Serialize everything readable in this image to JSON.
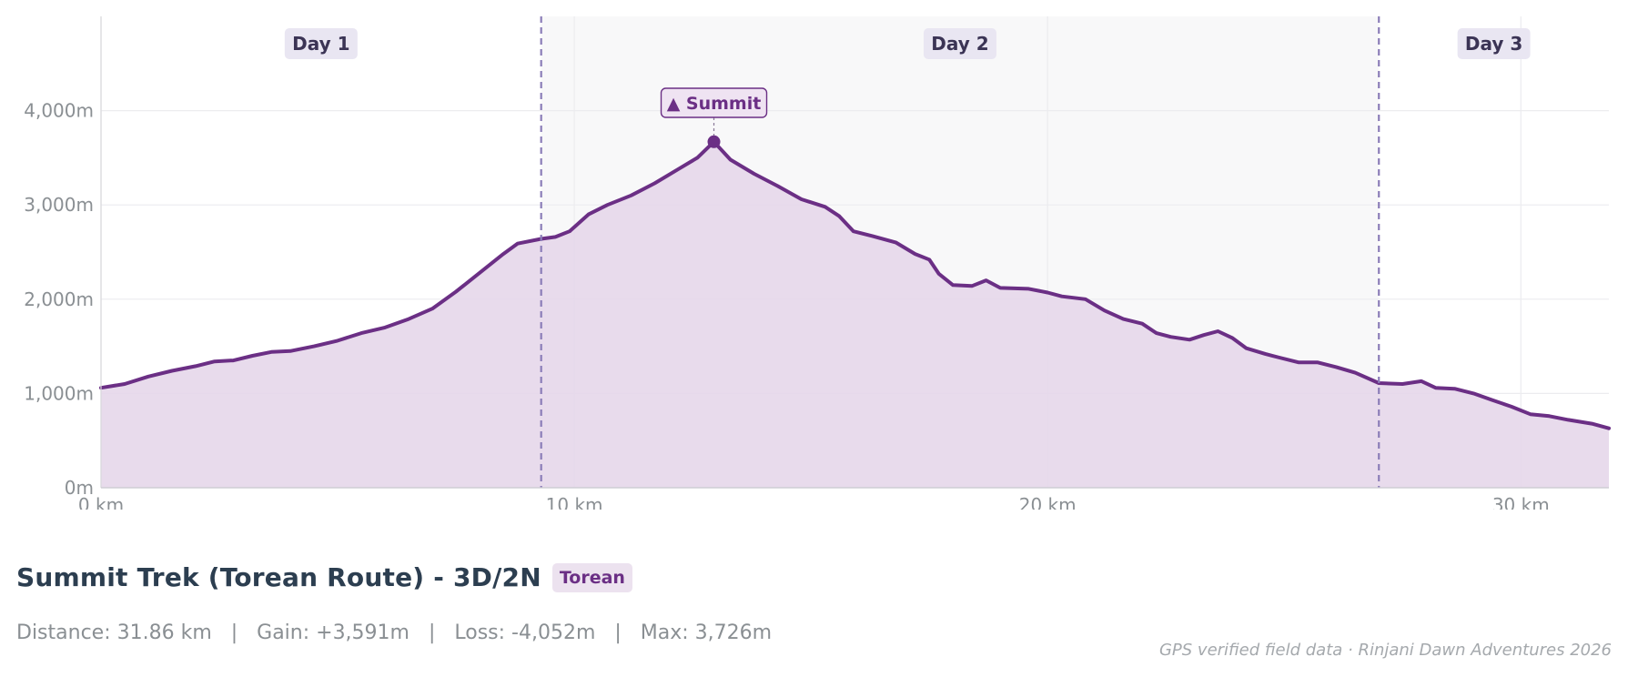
{
  "chart_data": {
    "type": "area",
    "title": "Summit Trek (Torean Route) - 3D/2N",
    "route_badge": "Torean",
    "xlabel": "",
    "ylabel": "",
    "xlim": [
      0,
      31.86
    ],
    "ylim": [
      0,
      5000
    ],
    "x_ticks": [
      {
        "value": 0,
        "label": "0 km"
      },
      {
        "value": 10,
        "label": "10 km"
      },
      {
        "value": 20,
        "label": "20 km"
      },
      {
        "value": 30,
        "label": "30 km"
      }
    ],
    "y_ticks": [
      {
        "value": 0,
        "label": "0m"
      },
      {
        "value": 1000,
        "label": "1,000m"
      },
      {
        "value": 2000,
        "label": "2,000m"
      },
      {
        "value": 3000,
        "label": "3,000m"
      },
      {
        "value": 4000,
        "label": "4,000m"
      }
    ],
    "grid": true,
    "series": [
      {
        "color": "#6b2f85",
        "fill": "#e6d7ea",
        "points": [
          [
            0,
            1060
          ],
          [
            0.5,
            1100
          ],
          [
            1.0,
            1180
          ],
          [
            1.5,
            1240
          ],
          [
            2.0,
            1290
          ],
          [
            2.4,
            1340
          ],
          [
            2.8,
            1350
          ],
          [
            3.2,
            1400
          ],
          [
            3.6,
            1440
          ],
          [
            4.0,
            1450
          ],
          [
            4.5,
            1500
          ],
          [
            5.0,
            1560
          ],
          [
            5.5,
            1640
          ],
          [
            6.0,
            1700
          ],
          [
            6.5,
            1790
          ],
          [
            7.0,
            1900
          ],
          [
            7.5,
            2080
          ],
          [
            8.0,
            2280
          ],
          [
            8.5,
            2480
          ],
          [
            8.8,
            2590
          ],
          [
            9.3,
            2640
          ],
          [
            9.6,
            2660
          ],
          [
            9.9,
            2720
          ],
          [
            10.3,
            2900
          ],
          [
            10.7,
            3000
          ],
          [
            11.2,
            3100
          ],
          [
            11.7,
            3230
          ],
          [
            12.2,
            3380
          ],
          [
            12.6,
            3500
          ],
          [
            12.95,
            3670
          ],
          [
            13.3,
            3480
          ],
          [
            13.8,
            3330
          ],
          [
            14.3,
            3200
          ],
          [
            14.8,
            3060
          ],
          [
            15.3,
            2980
          ],
          [
            15.6,
            2880
          ],
          [
            15.9,
            2720
          ],
          [
            16.3,
            2670
          ],
          [
            16.8,
            2600
          ],
          [
            17.2,
            2480
          ],
          [
            17.5,
            2420
          ],
          [
            17.7,
            2270
          ],
          [
            18.0,
            2150
          ],
          [
            18.4,
            2140
          ],
          [
            18.7,
            2200
          ],
          [
            19.0,
            2120
          ],
          [
            19.6,
            2110
          ],
          [
            20.0,
            2070
          ],
          [
            20.3,
            2030
          ],
          [
            20.8,
            2000
          ],
          [
            21.2,
            1880
          ],
          [
            21.6,
            1790
          ],
          [
            22.0,
            1740
          ],
          [
            22.3,
            1640
          ],
          [
            22.6,
            1600
          ],
          [
            23.0,
            1570
          ],
          [
            23.3,
            1620
          ],
          [
            23.6,
            1660
          ],
          [
            23.9,
            1590
          ],
          [
            24.2,
            1480
          ],
          [
            24.6,
            1420
          ],
          [
            24.9,
            1380
          ],
          [
            25.3,
            1330
          ],
          [
            25.7,
            1330
          ],
          [
            26.1,
            1280
          ],
          [
            26.5,
            1220
          ],
          [
            27.0,
            1110
          ],
          [
            27.5,
            1100
          ],
          [
            27.9,
            1130
          ],
          [
            28.2,
            1060
          ],
          [
            28.6,
            1050
          ],
          [
            29.0,
            1000
          ],
          [
            29.4,
            930
          ],
          [
            29.8,
            860
          ],
          [
            30.2,
            780
          ],
          [
            30.6,
            760
          ],
          [
            31.0,
            720
          ],
          [
            31.5,
            680
          ],
          [
            31.86,
            630
          ]
        ]
      }
    ],
    "day_bounds": [
      9.3,
      27.0
    ],
    "days": [
      {
        "label": "Day 1",
        "start": 0,
        "end": 9.3,
        "shaded": false
      },
      {
        "label": "Day 2",
        "start": 9.3,
        "end": 27.0,
        "shaded": true
      },
      {
        "label": "Day 3",
        "start": 27.0,
        "end": 31.86,
        "shaded": false
      }
    ],
    "annotation": {
      "label": "▲ Summit",
      "x": 12.95,
      "y": 3670
    },
    "stats": {
      "distance": "Distance: 31.86 km",
      "gain": "Gain: +3,591m",
      "loss": "Loss: -4,052m",
      "max": "Max: 3,726m",
      "separator": "|"
    },
    "source": "GPS verified field data · Rinjani Dawn Adventures 2026"
  }
}
